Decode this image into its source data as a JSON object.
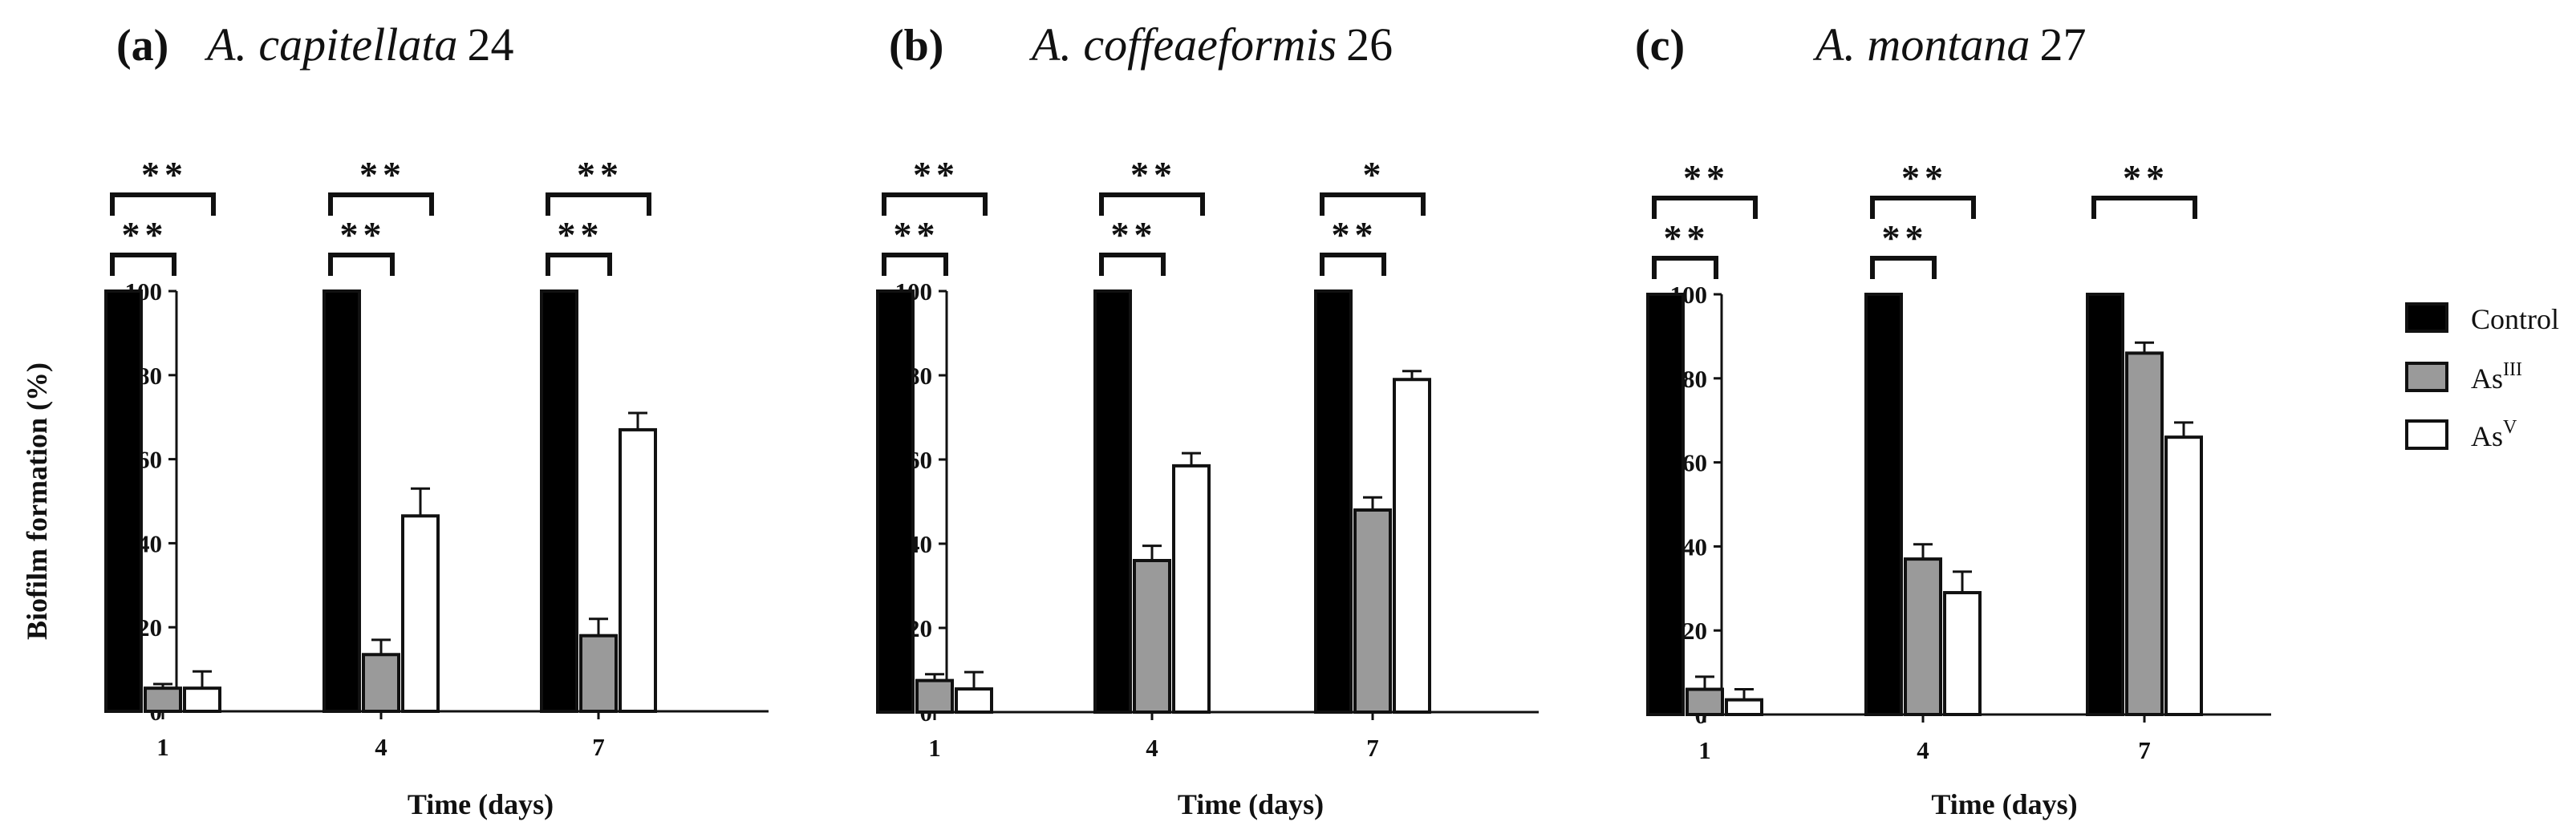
{
  "chart_data": [
    {
      "type": "bar",
      "panel_label": "(a)",
      "title_species": "A. capitellata",
      "title_strain": "24",
      "xlabel": "Time (days)",
      "ylabel": "Biofilm formation (%)",
      "ylim": [
        0,
        100
      ],
      "yticks": [
        0,
        20,
        40,
        60,
        80,
        100
      ],
      "categories": [
        "1",
        "4",
        "7"
      ],
      "series": [
        {
          "name": "Control",
          "values": [
            100,
            100,
            100
          ],
          "errors": [
            0,
            0,
            0
          ]
        },
        {
          "name": "AsIII",
          "values": [
            5.5,
            13.5,
            18
          ],
          "errors": [
            1,
            3.5,
            4
          ]
        },
        {
          "name": "AsV",
          "values": [
            5.5,
            46.5,
            67
          ],
          "errors": [
            4,
            6.5,
            4
          ]
        }
      ],
      "significance": [
        {
          "group": 0,
          "from": 0,
          "to": 1,
          "label": "**"
        },
        {
          "group": 0,
          "from": 0,
          "to": 2,
          "label": "**"
        },
        {
          "group": 1,
          "from": 0,
          "to": 1,
          "label": "**"
        },
        {
          "group": 1,
          "from": 0,
          "to": 2,
          "label": "**"
        },
        {
          "group": 2,
          "from": 0,
          "to": 1,
          "label": "**"
        },
        {
          "group": 2,
          "from": 0,
          "to": 2,
          "label": "**"
        }
      ]
    },
    {
      "type": "bar",
      "panel_label": "(b)",
      "title_species": "A. coffeaeformis",
      "title_strain": "26",
      "xlabel": "Time (days)",
      "ylabel": "",
      "ylim": [
        0,
        100
      ],
      "yticks": [
        0,
        20,
        40,
        60,
        80,
        100
      ],
      "categories": [
        "1",
        "4",
        "7"
      ],
      "series": [
        {
          "name": "Control",
          "values": [
            100,
            100,
            100
          ],
          "errors": [
            0,
            0,
            0
          ]
        },
        {
          "name": "AsIII",
          "values": [
            7.5,
            36,
            48
          ],
          "errors": [
            1.5,
            3.5,
            3
          ]
        },
        {
          "name": "AsV",
          "values": [
            5.5,
            58.5,
            79
          ],
          "errors": [
            4,
            3,
            2
          ]
        }
      ],
      "significance": [
        {
          "group": 0,
          "from": 0,
          "to": 1,
          "label": "**"
        },
        {
          "group": 0,
          "from": 0,
          "to": 2,
          "label": "**"
        },
        {
          "group": 1,
          "from": 0,
          "to": 1,
          "label": "**"
        },
        {
          "group": 1,
          "from": 0,
          "to": 2,
          "label": "**"
        },
        {
          "group": 2,
          "from": 0,
          "to": 1,
          "label": "**"
        },
        {
          "group": 2,
          "from": 0,
          "to": 2,
          "label": "*"
        }
      ]
    },
    {
      "type": "bar",
      "panel_label": "(c)",
      "title_species": "A. montana",
      "title_strain": "27",
      "xlabel": "Time (days)",
      "ylabel": "",
      "ylim": [
        0,
        100
      ],
      "yticks": [
        0,
        20,
        40,
        60,
        80,
        100
      ],
      "categories": [
        "1",
        "4",
        "7"
      ],
      "series": [
        {
          "name": "Control",
          "values": [
            100,
            100,
            100
          ],
          "errors": [
            0,
            0,
            0
          ]
        },
        {
          "name": "AsIII",
          "values": [
            6,
            37,
            86
          ],
          "errors": [
            3,
            3.5,
            2.5
          ]
        },
        {
          "name": "AsV",
          "values": [
            3.5,
            29,
            66
          ],
          "errors": [
            2.5,
            5,
            3.5
          ]
        }
      ],
      "significance": [
        {
          "group": 0,
          "from": 0,
          "to": 1,
          "label": "**"
        },
        {
          "group": 0,
          "from": 0,
          "to": 2,
          "label": "**"
        },
        {
          "group": 1,
          "from": 0,
          "to": 1,
          "label": "**"
        },
        {
          "group": 1,
          "from": 0,
          "to": 2,
          "label": "**"
        },
        {
          "group": 2,
          "from": 0,
          "to": 2,
          "label": "**"
        }
      ]
    }
  ],
  "legend": {
    "items": [
      {
        "base": "Control",
        "sup": "",
        "fill": "#000000"
      },
      {
        "base": "As",
        "sup": "III",
        "fill": "#9a9a9a"
      },
      {
        "base": "As",
        "sup": "V",
        "fill": "#ffffff"
      }
    ]
  },
  "colors": {
    "control": "#000000",
    "asiii": "#9a9a9a",
    "asv": "#ffffff",
    "stroke": "#111111"
  }
}
